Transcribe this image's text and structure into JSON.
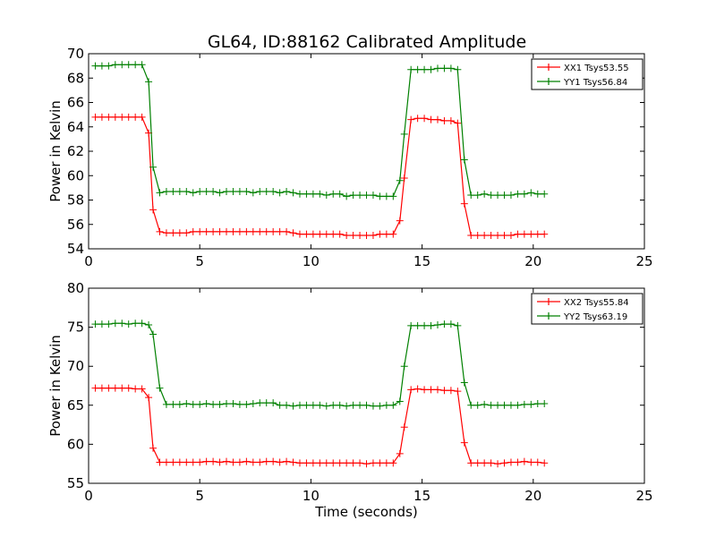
{
  "title": "GL64, ID:88162 Calibrated Amplitude",
  "chart_data": [
    {
      "type": "line",
      "title": "GL64, ID:88162 Calibrated Amplitude",
      "xlabel": "",
      "ylabel": "Power in Kelvin",
      "xlim": [
        0,
        25
      ],
      "ylim": [
        54,
        70
      ],
      "xticks": [
        0,
        5,
        10,
        15,
        20,
        25
      ],
      "yticks": [
        54,
        56,
        58,
        60,
        62,
        64,
        66,
        68,
        70
      ],
      "grid": false,
      "legend": "top-right",
      "x": [
        0.3,
        0.6,
        0.9,
        1.2,
        1.5,
        1.8,
        2.1,
        2.4,
        2.7,
        2.9,
        3.2,
        3.5,
        3.8,
        4.1,
        4.4,
        4.7,
        5.0,
        5.3,
        5.6,
        5.9,
        6.2,
        6.5,
        6.8,
        7.1,
        7.4,
        7.7,
        8.0,
        8.3,
        8.6,
        8.9,
        9.2,
        9.5,
        9.8,
        10.1,
        10.4,
        10.7,
        11.0,
        11.3,
        11.6,
        11.9,
        12.2,
        12.5,
        12.8,
        13.1,
        13.4,
        13.7,
        14.0,
        14.2,
        14.5,
        14.8,
        15.1,
        15.4,
        15.7,
        16.0,
        16.3,
        16.6,
        16.9,
        17.2,
        17.5,
        17.8,
        18.1,
        18.4,
        18.7,
        19.0,
        19.3,
        19.6,
        19.9,
        20.2,
        20.5
      ],
      "series": [
        {
          "name": "XX1 Tsys53.55",
          "color": "#ff0000",
          "values": [
            64.8,
            64.8,
            64.8,
            64.8,
            64.8,
            64.8,
            64.8,
            64.8,
            63.5,
            57.2,
            55.4,
            55.3,
            55.3,
            55.3,
            55.3,
            55.4,
            55.4,
            55.4,
            55.4,
            55.4,
            55.4,
            55.4,
            55.4,
            55.4,
            55.4,
            55.4,
            55.4,
            55.4,
            55.4,
            55.4,
            55.3,
            55.2,
            55.2,
            55.2,
            55.2,
            55.2,
            55.2,
            55.2,
            55.1,
            55.1,
            55.1,
            55.1,
            55.1,
            55.2,
            55.2,
            55.2,
            56.3,
            59.8,
            64.6,
            64.7,
            64.7,
            64.6,
            64.6,
            64.5,
            64.5,
            64.3,
            57.7,
            55.1,
            55.1,
            55.1,
            55.1,
            55.1,
            55.1,
            55.1,
            55.2,
            55.2,
            55.2,
            55.2,
            55.2
          ]
        },
        {
          "name": "YY1 Tsys56.84",
          "color": "#008000",
          "values": [
            69.0,
            69.0,
            69.0,
            69.1,
            69.1,
            69.1,
            69.1,
            69.1,
            67.7,
            60.7,
            58.6,
            58.7,
            58.7,
            58.7,
            58.7,
            58.6,
            58.7,
            58.7,
            58.7,
            58.6,
            58.7,
            58.7,
            58.7,
            58.7,
            58.6,
            58.7,
            58.7,
            58.7,
            58.6,
            58.7,
            58.6,
            58.5,
            58.5,
            58.5,
            58.5,
            58.4,
            58.5,
            58.5,
            58.3,
            58.4,
            58.4,
            58.4,
            58.4,
            58.3,
            58.3,
            58.3,
            59.6,
            63.4,
            68.7,
            68.7,
            68.7,
            68.7,
            68.8,
            68.8,
            68.8,
            68.7,
            61.3,
            58.4,
            58.4,
            58.5,
            58.4,
            58.4,
            58.4,
            58.4,
            58.5,
            58.5,
            58.6,
            58.5,
            58.5
          ]
        }
      ]
    },
    {
      "type": "line",
      "title": "",
      "xlabel": "Time (seconds)",
      "ylabel": "Power in Kelvin",
      "xlim": [
        0,
        25
      ],
      "ylim": [
        55,
        80
      ],
      "xticks": [
        0,
        5,
        10,
        15,
        20,
        25
      ],
      "yticks": [
        55,
        60,
        65,
        70,
        75,
        80
      ],
      "grid": false,
      "legend": "top-right",
      "x": [
        0.3,
        0.6,
        0.9,
        1.2,
        1.5,
        1.8,
        2.1,
        2.4,
        2.7,
        2.9,
        3.2,
        3.5,
        3.8,
        4.1,
        4.4,
        4.7,
        5.0,
        5.3,
        5.6,
        5.9,
        6.2,
        6.5,
        6.8,
        7.1,
        7.4,
        7.7,
        8.0,
        8.3,
        8.6,
        8.9,
        9.2,
        9.5,
        9.8,
        10.1,
        10.4,
        10.7,
        11.0,
        11.3,
        11.6,
        11.9,
        12.2,
        12.5,
        12.8,
        13.1,
        13.4,
        13.7,
        14.0,
        14.2,
        14.5,
        14.8,
        15.1,
        15.4,
        15.7,
        16.0,
        16.3,
        16.6,
        16.9,
        17.2,
        17.5,
        17.8,
        18.1,
        18.4,
        18.7,
        19.0,
        19.3,
        19.6,
        19.9,
        20.2,
        20.5
      ],
      "series": [
        {
          "name": "XX2 Tsys55.84",
          "color": "#ff0000",
          "values": [
            67.2,
            67.2,
            67.2,
            67.2,
            67.2,
            67.2,
            67.1,
            67.1,
            66.0,
            59.5,
            57.7,
            57.7,
            57.7,
            57.7,
            57.7,
            57.7,
            57.7,
            57.8,
            57.8,
            57.7,
            57.8,
            57.7,
            57.7,
            57.8,
            57.7,
            57.7,
            57.8,
            57.8,
            57.7,
            57.8,
            57.7,
            57.6,
            57.6,
            57.6,
            57.6,
            57.6,
            57.6,
            57.6,
            57.6,
            57.6,
            57.6,
            57.5,
            57.6,
            57.6,
            57.6,
            57.6,
            58.8,
            62.2,
            67.0,
            67.1,
            67.0,
            67.0,
            67.0,
            66.9,
            66.9,
            66.8,
            60.2,
            57.6,
            57.6,
            57.6,
            57.6,
            57.5,
            57.6,
            57.7,
            57.7,
            57.8,
            57.7,
            57.7,
            57.6
          ]
        },
        {
          "name": "YY2 Tsys63.19",
          "color": "#008000",
          "values": [
            75.4,
            75.4,
            75.4,
            75.5,
            75.5,
            75.4,
            75.5,
            75.5,
            75.3,
            74.1,
            67.2,
            65.1,
            65.1,
            65.1,
            65.2,
            65.1,
            65.1,
            65.2,
            65.1,
            65.1,
            65.2,
            65.2,
            65.1,
            65.1,
            65.2,
            65.3,
            65.3,
            65.3,
            65.0,
            65.0,
            64.9,
            65.0,
            65.0,
            65.0,
            65.0,
            64.9,
            65.0,
            65.0,
            64.9,
            65.0,
            65.0,
            65.0,
            64.9,
            64.9,
            65.0,
            65.0,
            65.5,
            70.0,
            75.2,
            75.2,
            75.2,
            75.2,
            75.3,
            75.4,
            75.4,
            75.2,
            67.9,
            65.0,
            65.0,
            65.1,
            65.0,
            65.0,
            65.0,
            65.0,
            65.0,
            65.1,
            65.1,
            65.2,
            65.2
          ]
        }
      ]
    }
  ]
}
